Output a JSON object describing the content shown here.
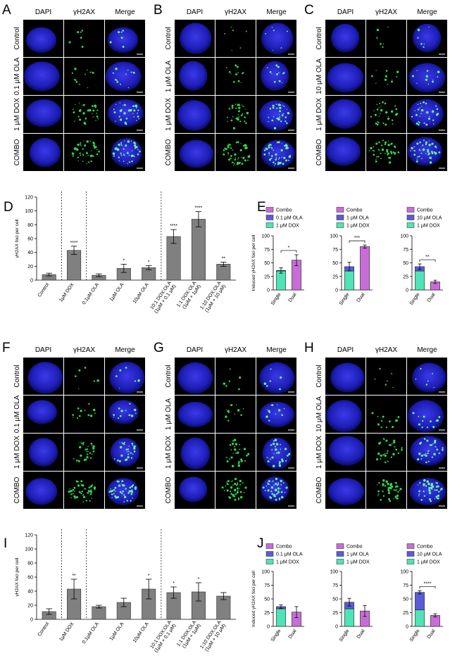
{
  "image_panels": [
    {
      "letter": "A",
      "columns": [
        "DAPI",
        "γH2AX",
        "Merge"
      ],
      "rows": [
        "Control",
        "0.1 μM OLA",
        "1 μM DOX",
        "COMBO"
      ]
    },
    {
      "letter": "B",
      "columns": [
        "DAPI",
        "γH2AX",
        "Merge"
      ],
      "rows": [
        "Control",
        "1 μM OLA",
        "1 μM DOX",
        "COMBO"
      ]
    },
    {
      "letter": "C",
      "columns": [
        "DAPI",
        "γH2AX",
        "Merge"
      ],
      "rows": [
        "Control",
        "10 μM OLA",
        "1 μM DOX",
        "COMBO"
      ]
    },
    {
      "letter": "F",
      "columns": [
        "DAPI",
        "γH2AX",
        "Merge"
      ],
      "rows": [
        "Control",
        "0.1 μM OLA",
        "1 μM DOX",
        "COMBO"
      ]
    },
    {
      "letter": "G",
      "columns": [
        "DAPI",
        "γH2AX",
        "Merge"
      ],
      "rows": [
        "Control",
        "1 μM OLA",
        "1 μM DOX",
        "COMBO"
      ]
    },
    {
      "letter": "H",
      "columns": [
        "DAPI",
        "γH2AX",
        "Merge"
      ],
      "rows": [
        "Control",
        "10 μM OLA",
        "1 μM DOX",
        "COMBO"
      ]
    }
  ],
  "chart_data": [
    {
      "type": "bar",
      "letter": "D",
      "y_label": "γH2AX foci per cell",
      "color": "#808080",
      "categories": [
        "Control",
        "1μM DOX",
        "0.1μM OLA",
        "1μM OLA",
        "10μM OLA",
        "10:1 DOX:OLA\n(1μM + 0.1 μM)",
        "1:1 DOX:OLA\n(1μM + 1μM)",
        "1:10 DOX:OLA\n(1μM + 10 μM)"
      ],
      "values": [
        8,
        43,
        7,
        17,
        18,
        63,
        88,
        23
      ],
      "errors": [
        2,
        6,
        2,
        6,
        3,
        10,
        11,
        3
      ],
      "annotations": [
        null,
        "****",
        null,
        "*",
        "*",
        "****",
        "****",
        "**"
      ],
      "ylim": [
        0,
        120
      ],
      "yticks": [
        0,
        20,
        40,
        60,
        80,
        100,
        120
      ]
    },
    {
      "type": "stacked_bar",
      "letter": "E",
      "y_label": "Induced γH2AX foci per cell",
      "categories": [
        "Single",
        "Dual"
      ],
      "series": [
        {
          "name": "Combo",
          "color": "#c86dd7",
          "values": [
            null,
            55
          ],
          "errors": [
            null,
            10
          ]
        },
        {
          "name": "0.1 μM OLA",
          "color": "#5b5bd6",
          "values": [
            1,
            null
          ],
          "errors": [
            5,
            null
          ]
        },
        {
          "name": "1 μM DOX",
          "color": "#50e3b5",
          "values": [
            35,
            null
          ],
          "errors": [
            null,
            null
          ]
        }
      ],
      "significance": "*",
      "ylim": [
        0,
        100
      ],
      "yticks": [
        0,
        25,
        50,
        75,
        100
      ]
    },
    {
      "type": "stacked_bar",
      "categories": [
        "Single",
        "Dual"
      ],
      "series": [
        {
          "name": "Combo",
          "color": "#c86dd7",
          "values": [
            null,
            80
          ],
          "errors": [
            null,
            3
          ]
        },
        {
          "name": "1 μM OLA",
          "color": "#5b5bd6",
          "values": [
            8,
            null
          ],
          "errors": [
            8,
            null
          ]
        },
        {
          "name": "1 μM DOX",
          "color": "#50e3b5",
          "values": [
            35,
            null
          ],
          "errors": [
            null,
            null
          ]
        }
      ],
      "significance": "***",
      "ylim": [
        0,
        100
      ],
      "yticks": [
        0,
        25,
        50,
        75,
        100
      ]
    },
    {
      "type": "stacked_bar",
      "categories": [
        "Single",
        "Dual"
      ],
      "series": [
        {
          "name": "Combo",
          "color": "#c86dd7",
          "values": [
            null,
            15
          ],
          "errors": [
            null,
            3
          ]
        },
        {
          "name": "10 μM OLA",
          "color": "#5b5bd6",
          "values": [
            8,
            null
          ],
          "errors": [
            5,
            null
          ]
        },
        {
          "name": "1 μM DOX",
          "color": "#50e3b5",
          "values": [
            35,
            null
          ],
          "errors": [
            null,
            null
          ]
        }
      ],
      "significance": "**",
      "ylim": [
        0,
        100
      ],
      "yticks": [
        0,
        25,
        50,
        75,
        100
      ]
    },
    {
      "type": "bar",
      "letter": "I",
      "y_label": "γH2AX foci per cell",
      "color": "#808080",
      "categories": [
        "Control",
        "1μM DOX",
        "0.1μM OLA",
        "1μM OLA",
        "10μM OLA",
        "10:1 DOX:OLA\n(1μM + 0.1 μM)",
        "1:1 DOX:OLA\n(1μM + 1μM)",
        "1:10 DOX:OLA\n(1μM + 10 μM)"
      ],
      "values": [
        11,
        43,
        18,
        24,
        43,
        38,
        39,
        33
      ],
      "errors": [
        4,
        14,
        2,
        6,
        14,
        8,
        13,
        5
      ],
      "annotations": [
        null,
        "**",
        null,
        null,
        "*",
        "*",
        "*",
        null
      ],
      "ylim": [
        0,
        120
      ],
      "yticks": [
        0,
        20,
        40,
        60,
        80,
        100,
        120
      ]
    },
    {
      "type": "stacked_bar",
      "letter": "J",
      "y_label": "Induced γH2AX foci per cell",
      "categories": [
        "Single",
        "Dual"
      ],
      "series": [
        {
          "name": "Combo",
          "color": "#c86dd7",
          "values": [
            null,
            26
          ],
          "errors": [
            null,
            10
          ]
        },
        {
          "name": "0.1 μM OLA",
          "color": "#5b5bd6",
          "values": [
            4,
            null
          ],
          "errors": [
            3,
            null
          ]
        },
        {
          "name": "1 μM DOX",
          "color": "#50e3b5",
          "values": [
            32,
            null
          ],
          "errors": [
            null,
            null
          ]
        }
      ],
      "ylim": [
        0,
        100
      ],
      "yticks": [
        0,
        25,
        50,
        75,
        100
      ]
    },
    {
      "type": "stacked_bar",
      "categories": [
        "Single",
        "Dual"
      ],
      "series": [
        {
          "name": "Combo",
          "color": "#c86dd7",
          "values": [
            null,
            28
          ],
          "errors": [
            null,
            10
          ]
        },
        {
          "name": "1 μM OLA",
          "color": "#5b5bd6",
          "values": [
            12,
            null
          ],
          "errors": [
            7,
            null
          ]
        },
        {
          "name": "1 μM DOX",
          "color": "#50e3b5",
          "values": [
            32,
            null
          ],
          "errors": [
            null,
            null
          ]
        }
      ],
      "ylim": [
        0,
        100
      ],
      "yticks": [
        0,
        25,
        50,
        75,
        100
      ]
    },
    {
      "type": "stacked_bar",
      "categories": [
        "Single",
        "Dual"
      ],
      "series": [
        {
          "name": "Combo",
          "color": "#c86dd7",
          "values": [
            null,
            20
          ],
          "errors": [
            null,
            3
          ]
        },
        {
          "name": "10 μM OLA",
          "color": "#5b5bd6",
          "values": [
            32,
            null
          ],
          "errors": [
            3,
            null
          ]
        },
        {
          "name": "1 μM DOX",
          "color": "#50e3b5",
          "values": [
            30,
            null
          ],
          "errors": [
            null,
            null
          ]
        }
      ],
      "significance": "****",
      "ylim": [
        0,
        100
      ],
      "yticks": [
        0,
        25,
        50,
        75,
        100
      ]
    }
  ]
}
